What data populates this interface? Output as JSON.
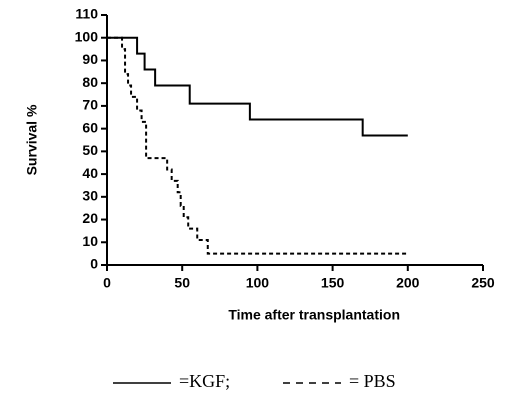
{
  "chart_data": {
    "type": "line",
    "step": true,
    "xlabel": "Time after transplantation",
    "ylabel": "Survival %",
    "xlim": [
      0,
      250
    ],
    "xticks": [
      0,
      50,
      100,
      150,
      200,
      250
    ],
    "ylim": [
      0,
      110
    ],
    "yticks": [
      0,
      10,
      20,
      30,
      40,
      50,
      60,
      70,
      80,
      90,
      100,
      110
    ],
    "grid": false,
    "series": [
      {
        "name": "=KGF;",
        "color": "#000000",
        "dash": false,
        "x": [
          0,
          20,
          25,
          32,
          55,
          95,
          170,
          200
        ],
        "values": [
          100,
          93,
          86,
          79,
          71,
          64,
          57,
          57
        ]
      },
      {
        "name": "= PBS",
        "color": "#000000",
        "dash": true,
        "x": [
          0,
          10,
          12,
          14,
          16,
          20,
          23,
          26,
          40,
          43,
          47,
          49,
          51,
          54,
          60,
          67,
          200
        ],
        "values": [
          100,
          95,
          84,
          79,
          74,
          68,
          63,
          47,
          42,
          37,
          32,
          26,
          21,
          16,
          11,
          5,
          5
        ]
      }
    ]
  }
}
